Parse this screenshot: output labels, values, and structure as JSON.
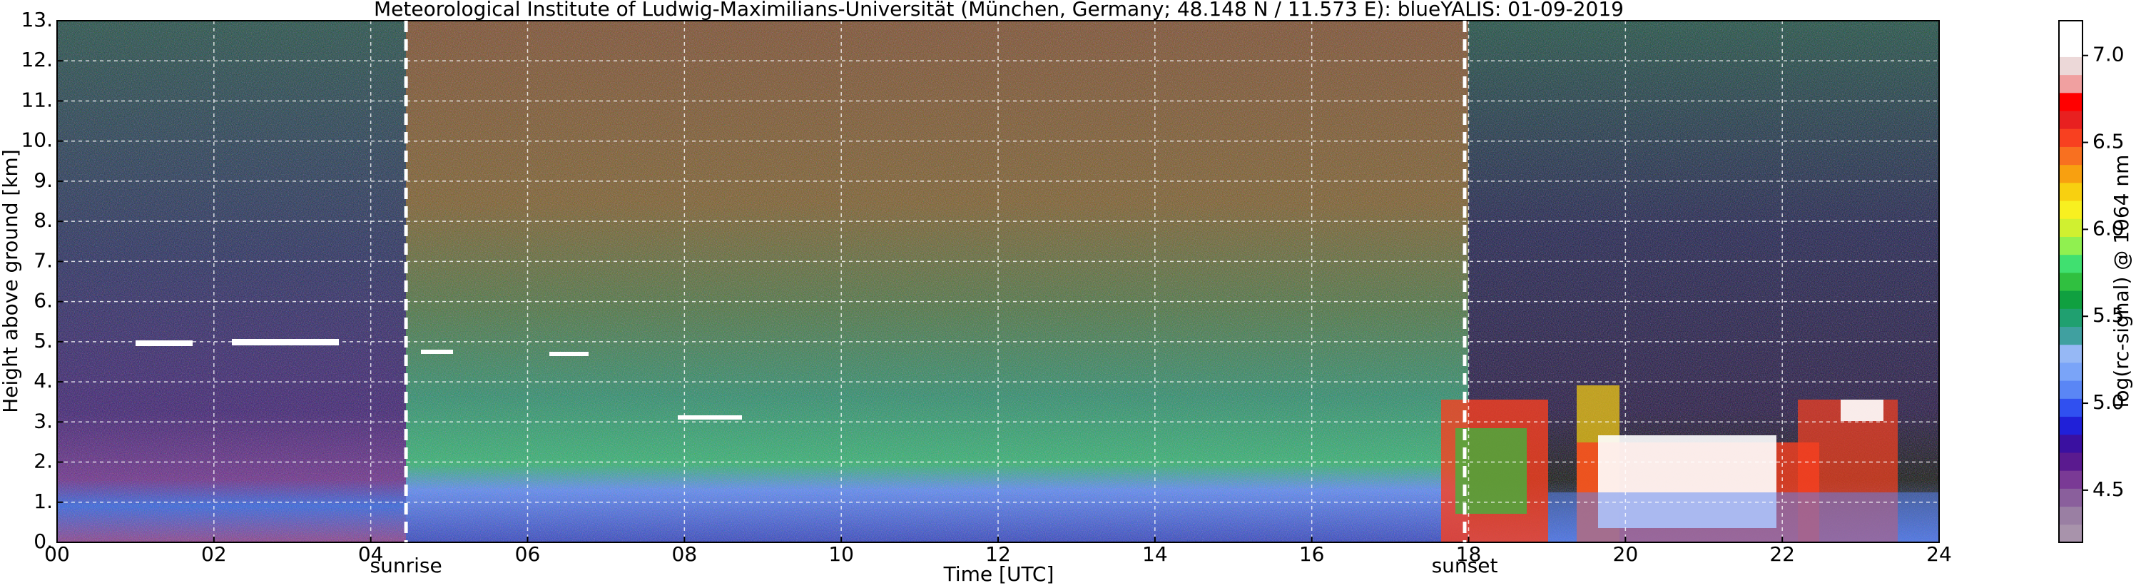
{
  "chart_data": {
    "type": "heatmap",
    "title": "Meteorological Institute of Ludwig-Maximilians-Universität (München, Germany; 48.148 N / 11.573 E):    blueYALIS: 01-09-2019",
    "x_label": "Time [UTC]",
    "y_label": "Height above ground [km]",
    "colorbar_label": "log(rc-signal) @ 1064 nm",
    "xlim": [
      0,
      24
    ],
    "xticks": [
      {
        "value": 0,
        "label": "00"
      },
      {
        "value": 2,
        "label": "02"
      },
      {
        "value": 4,
        "label": "04"
      },
      {
        "value": 6,
        "label": "06"
      },
      {
        "value": 8,
        "label": "08"
      },
      {
        "value": 10,
        "label": "10"
      },
      {
        "value": 12,
        "label": "12"
      },
      {
        "value": 14,
        "label": "14"
      },
      {
        "value": 16,
        "label": "16"
      },
      {
        "value": 18,
        "label": "18"
      },
      {
        "value": 20,
        "label": "20"
      },
      {
        "value": 22,
        "label": "22"
      },
      {
        "value": 24,
        "label": "24"
      }
    ],
    "ylim": [
      0,
      13
    ],
    "yticks": [
      {
        "value": 0,
        "label": "0."
      },
      {
        "value": 1,
        "label": "1."
      },
      {
        "value": 2,
        "label": "2."
      },
      {
        "value": 3,
        "label": "3."
      },
      {
        "value": 4,
        "label": "4."
      },
      {
        "value": 5,
        "label": "5."
      },
      {
        "value": 6,
        "label": "6."
      },
      {
        "value": 7,
        "label": "7."
      },
      {
        "value": 8,
        "label": "8."
      },
      {
        "value": 9,
        "label": "9."
      },
      {
        "value": 10,
        "label": "10."
      },
      {
        "value": 11,
        "label": "11."
      },
      {
        "value": 12,
        "label": "12."
      },
      {
        "value": 13,
        "label": "13."
      }
    ],
    "clim": [
      4.2,
      7.2
    ],
    "cticks": [
      4.5,
      {
        "value": 5,
        "label": "5.0"
      },
      5.5,
      {
        "value": 6,
        "label": "6.0"
      },
      6.5,
      {
        "value": 7,
        "label": "7.0"
      }
    ],
    "colormap": [
      "#a893ab",
      "#9a7fa3",
      "#8a5f9c",
      "#7a3a95",
      "#5a1a8f",
      "#3a10a0",
      "#2020d8",
      "#3050f0",
      "#5a86f5",
      "#7aa4f8",
      "#96b8f5",
      "#40a0a0",
      "#20a070",
      "#10a040",
      "#30c040",
      "#40e070",
      "#90f050",
      "#d0f030",
      "#f8f020",
      "#f8d010",
      "#f8a010",
      "#f87020",
      "#f84020",
      "#e82020",
      "#ff0000",
      "#f0a0a0",
      "#ecd8d8",
      "#ffffff",
      "#ffffff"
    ],
    "grid": true,
    "annotations": [
      {
        "x": 4.45,
        "label": "sunrise"
      },
      {
        "x": 17.95,
        "label": "sunset"
      }
    ]
  }
}
